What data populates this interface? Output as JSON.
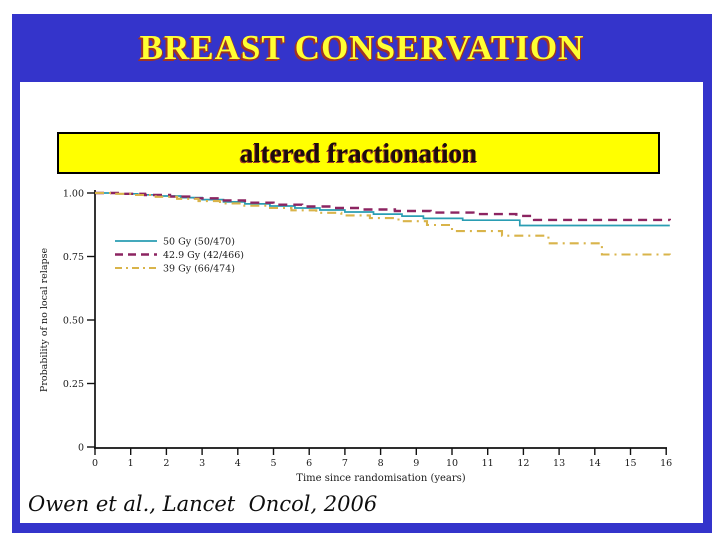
{
  "slide": {
    "title": "BREAST CONSERVATION",
    "subtitle_box_label": "altered fractionation",
    "citation": "Owen et al., Lancet  Oncol, 2006"
  },
  "colors": {
    "frame_blue": "#3434cb",
    "title_yellow": "#ffff33",
    "title_outline_red": "#a03325",
    "subtitle_box_yellow": "#ffff00",
    "series_50gy_teal": "#2a9db3",
    "series_429gy_maroon": "#8c2461",
    "series_39gy_gold": "#d9b44a"
  },
  "chart_data": {
    "type": "line",
    "subtype": "kaplan-meier-step",
    "title": "",
    "xlabel": "Time since randomisation (years)",
    "ylabel": "Probability of no local relapse",
    "xlim": [
      0,
      16
    ],
    "ylim": [
      0,
      1.0
    ],
    "grid": false,
    "legend_position": "upper-left-inside",
    "x_ticks": [
      0,
      1,
      2,
      3,
      4,
      5,
      6,
      7,
      8,
      9,
      10,
      11,
      12,
      13,
      14,
      15,
      16
    ],
    "y_ticks": [
      {
        "label": "1.00",
        "value": 1.0
      },
      {
        "label": "0.75",
        "value": 0.75
      },
      {
        "label": "0.50",
        "value": 0.5
      },
      {
        "label": "0.25",
        "value": 0.25
      },
      {
        "label": "0",
        "value": 0.0
      }
    ],
    "series": [
      {
        "name": "50 Gy (50/470)",
        "color": "#2a9db3",
        "style": "solid",
        "width": 1.7,
        "dash": "",
        "points": [
          [
            0,
            1.0
          ],
          [
            0.6,
            0.997
          ],
          [
            1.2,
            0.993
          ],
          [
            1.8,
            0.988
          ],
          [
            2.4,
            0.982
          ],
          [
            3.0,
            0.974
          ],
          [
            3.6,
            0.965
          ],
          [
            4.2,
            0.957
          ],
          [
            4.9,
            0.949
          ],
          [
            5.6,
            0.941
          ],
          [
            6.3,
            0.933
          ],
          [
            7.0,
            0.925
          ],
          [
            7.8,
            0.917
          ],
          [
            8.6,
            0.909
          ],
          [
            9.2,
            0.9
          ],
          [
            10.3,
            0.893
          ],
          [
            11.9,
            0.872
          ],
          [
            16.1,
            0.872
          ]
        ]
      },
      {
        "name": "42.9 Gy (42/466)",
        "color": "#8c2461",
        "style": "dashed",
        "width": 2.4,
        "dash": "9 6",
        "points": [
          [
            0,
            1.0
          ],
          [
            0.7,
            0.997
          ],
          [
            1.4,
            0.992
          ],
          [
            2.1,
            0.986
          ],
          [
            2.8,
            0.979
          ],
          [
            3.5,
            0.971
          ],
          [
            4.2,
            0.962
          ],
          [
            5.0,
            0.954
          ],
          [
            5.8,
            0.947
          ],
          [
            6.6,
            0.941
          ],
          [
            7.5,
            0.935
          ],
          [
            8.4,
            0.929
          ],
          [
            9.4,
            0.923
          ],
          [
            10.6,
            0.917
          ],
          [
            11.8,
            0.91
          ],
          [
            12.3,
            0.894
          ],
          [
            16.1,
            0.893
          ]
        ]
      },
      {
        "name": "39 Gy (66/474)",
        "color": "#d9b44a",
        "style": "dash-dot",
        "width": 2.1,
        "dash": "9 5 2 5",
        "points": [
          [
            0,
            1.0
          ],
          [
            0.5,
            0.997
          ],
          [
            1.1,
            0.992
          ],
          [
            1.7,
            0.985
          ],
          [
            2.3,
            0.977
          ],
          [
            2.9,
            0.968
          ],
          [
            3.5,
            0.959
          ],
          [
            4.1,
            0.95
          ],
          [
            4.8,
            0.941
          ],
          [
            5.5,
            0.932
          ],
          [
            6.2,
            0.922
          ],
          [
            6.9,
            0.912
          ],
          [
            7.7,
            0.901
          ],
          [
            8.5,
            0.889
          ],
          [
            9.3,
            0.874
          ],
          [
            10.0,
            0.85
          ],
          [
            11.4,
            0.832
          ],
          [
            12.7,
            0.802
          ],
          [
            14.2,
            0.758
          ],
          [
            16.1,
            0.757
          ]
        ]
      }
    ]
  }
}
